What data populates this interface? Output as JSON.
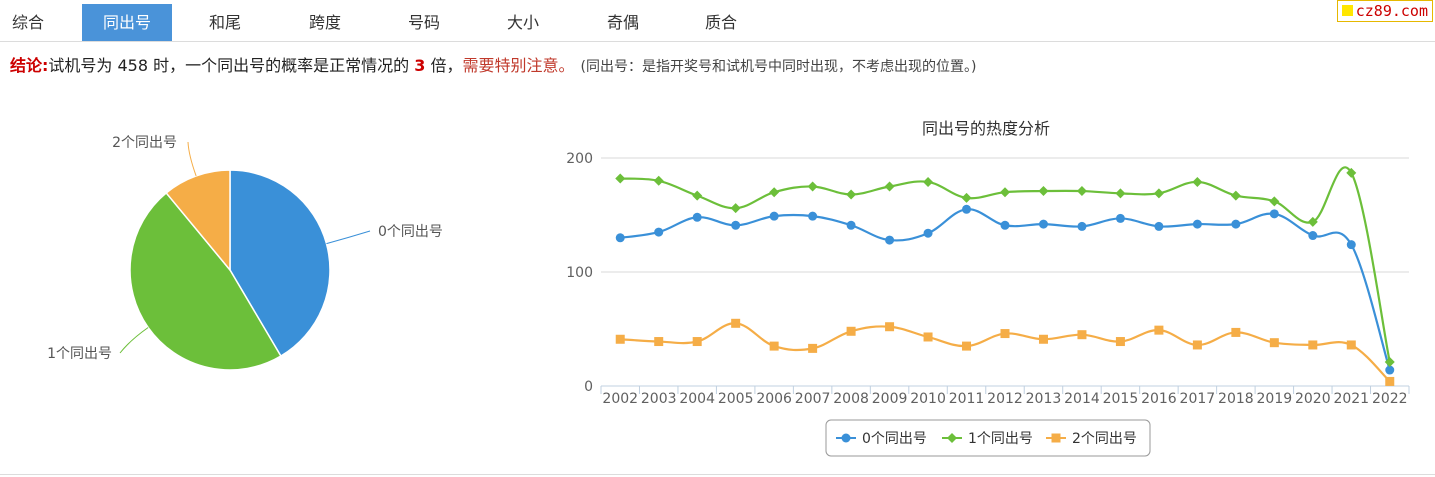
{
  "tabs": [
    {
      "label": "综合",
      "active": false
    },
    {
      "label": "同出号",
      "active": true
    },
    {
      "label": "和尾",
      "active": false
    },
    {
      "label": "跨度",
      "active": false
    },
    {
      "label": "号码",
      "active": false
    },
    {
      "label": "大小",
      "active": false
    },
    {
      "label": "奇偶",
      "active": false
    },
    {
      "label": "质合",
      "active": false
    }
  ],
  "logo": {
    "text": "cz89.com"
  },
  "conclusion": {
    "label": "结论:",
    "text_before": "试机号为 458 时，一个同出号的概率是正常情况的",
    "multiplier": "3",
    "text_after": "倍，",
    "warning": "需要特别注意。",
    "note": "(同出号：是指开奖号和试机号中同时出现，不考虑出现的位置。)"
  },
  "colors": {
    "series0": "#3a90d8",
    "series1": "#6cbf3a",
    "series2": "#f5ad47"
  },
  "chart_data": [
    {
      "type": "pie",
      "title": "",
      "slices": [
        {
          "name": "0个同出号",
          "value": 41.5
        },
        {
          "name": "1个同出号",
          "value": 47.5
        },
        {
          "name": "2个同出号",
          "value": 11.0
        }
      ]
    },
    {
      "type": "line",
      "title": "同出号的热度分析",
      "xlabel": "",
      "ylabel": "",
      "ylim": [
        0,
        200
      ],
      "yticks": [
        0,
        100,
        200
      ],
      "grid": true,
      "legend": "bottom-center",
      "categories": [
        "2002",
        "2003",
        "2004",
        "2005",
        "2006",
        "2007",
        "2008",
        "2009",
        "2010",
        "2011",
        "2012",
        "2013",
        "2014",
        "2015",
        "2016",
        "2017",
        "2018",
        "2019",
        "2020",
        "2021",
        "2022"
      ],
      "series": [
        {
          "name": "0个同出号",
          "marker": "circle",
          "values": [
            130,
            135,
            148,
            141,
            149,
            149,
            141,
            128,
            134,
            155,
            141,
            142,
            140,
            147,
            140,
            142,
            142,
            151,
            132,
            124,
            14
          ]
        },
        {
          "name": "1个同出号",
          "marker": "diamond",
          "values": [
            182,
            180,
            167,
            156,
            170,
            175,
            168,
            175,
            179,
            165,
            170,
            171,
            171,
            169,
            169,
            179,
            167,
            162,
            144,
            187,
            21
          ]
        },
        {
          "name": "2个同出号",
          "marker": "square",
          "values": [
            41,
            39,
            39,
            55,
            35,
            33,
            48,
            52,
            43,
            35,
            46,
            41,
            45,
            39,
            49,
            36,
            47,
            38,
            36,
            36,
            4
          ]
        }
      ]
    }
  ]
}
